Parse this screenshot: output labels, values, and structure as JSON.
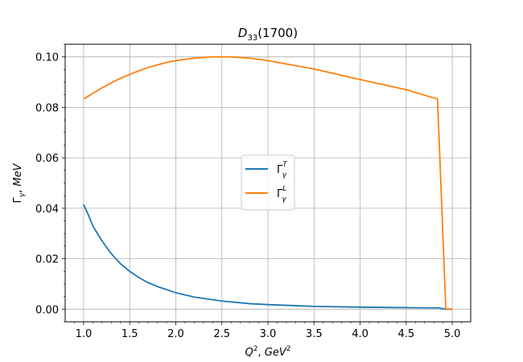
{
  "chart_data": {
    "type": "line",
    "title": "D33(1700)",
    "title_main": "D",
    "title_sub": "33",
    "title_rest": "(1700)",
    "xlabel": "Q2, GeV2",
    "ylabel": "Γγ, MeV",
    "xlim": [
      0.8,
      5.2
    ],
    "ylim": [
      -0.005,
      0.105
    ],
    "xticks": [
      1.0,
      1.5,
      2.0,
      2.5,
      3.0,
      3.5,
      4.0,
      4.5,
      5.0
    ],
    "xtick_labels": [
      "1.0",
      "1.5",
      "2.0",
      "2.5",
      "3.0",
      "3.5",
      "4.0",
      "4.5",
      "5.0"
    ],
    "yticks": [
      0.0,
      0.02,
      0.04,
      0.06,
      0.08,
      0.1
    ],
    "ytick_labels": [
      "0.00",
      "0.02",
      "0.04",
      "0.06",
      "0.08",
      "0.10"
    ],
    "grid": true,
    "legend_position": "center",
    "series": [
      {
        "name": "ΓγT",
        "color": "#1f77b4",
        "x": [
          1.0,
          1.05,
          1.1,
          1.15,
          1.2,
          1.3,
          1.4,
          1.5,
          1.6,
          1.7,
          1.8,
          2.0,
          2.2,
          2.5,
          2.8,
          3.0,
          3.5,
          4.0,
          4.5,
          4.85,
          4.92,
          5.0
        ],
        "y": [
          0.0415,
          0.0375,
          0.033,
          0.03,
          0.027,
          0.022,
          0.018,
          0.015,
          0.0125,
          0.0105,
          0.009,
          0.0065,
          0.0048,
          0.0032,
          0.0022,
          0.0018,
          0.0011,
          0.0008,
          0.0006,
          0.0005,
          0.0,
          0.0
        ]
      },
      {
        "name": "ΓγL",
        "color": "#ff7f0e",
        "x": [
          1.0,
          1.1,
          1.2,
          1.3,
          1.4,
          1.5,
          1.6,
          1.7,
          1.8,
          1.9,
          2.0,
          2.2,
          2.4,
          2.6,
          2.8,
          3.0,
          3.5,
          4.0,
          4.5,
          4.84,
          4.93,
          5.0
        ],
        "y": [
          0.0833,
          0.0855,
          0.0877,
          0.0897,
          0.0915,
          0.093,
          0.0945,
          0.0958,
          0.0968,
          0.0978,
          0.0985,
          0.0995,
          0.1,
          0.1,
          0.0995,
          0.0985,
          0.0952,
          0.091,
          0.087,
          0.0833,
          0.0,
          0.0
        ]
      }
    ],
    "legend": [
      {
        "symbol": "Γ",
        "sub": "γ",
        "sup": "T",
        "color": "#1f77b4"
      },
      {
        "symbol": "Γ",
        "sub": "γ",
        "sup": "L",
        "color": "#ff7f0e"
      }
    ],
    "xlabel_parts": {
      "q": "Q",
      "q_sup": "2",
      "sep": ", ",
      "unit": "GeV",
      "unit_sup": "2"
    },
    "ylabel_parts": {
      "g": "Γ",
      "g_sub": "γ",
      "sep": ", ",
      "unit": "MeV"
    }
  }
}
